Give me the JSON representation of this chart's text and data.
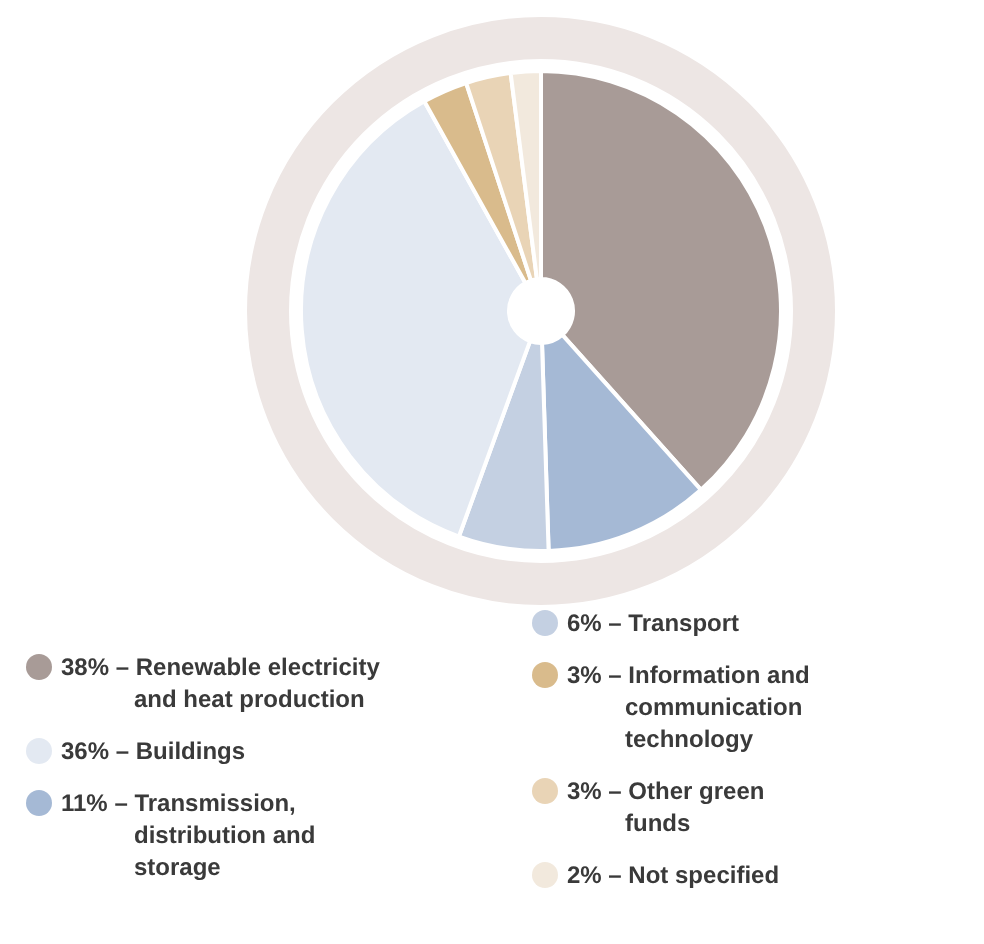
{
  "chart_data": {
    "type": "donut",
    "categories": [
      "Renewable electricity and heat production",
      "Transmission, distribution and storage",
      "Transport",
      "Buildings",
      "Information and communication technology",
      "Other green funds",
      "Not specified"
    ],
    "values": [
      38,
      11,
      6,
      36,
      3,
      3,
      2
    ],
    "colors": [
      "#a89b97",
      "#a5b9d5",
      "#c4d0e2",
      "#e3e9f2",
      "#d9bb8c",
      "#e9d4b6",
      "#f2e9dd"
    ],
    "value_labels": [
      "38%",
      "11%",
      "6%",
      "36%",
      "3%",
      "3%",
      "2%"
    ],
    "legend": "bottom"
  }
}
